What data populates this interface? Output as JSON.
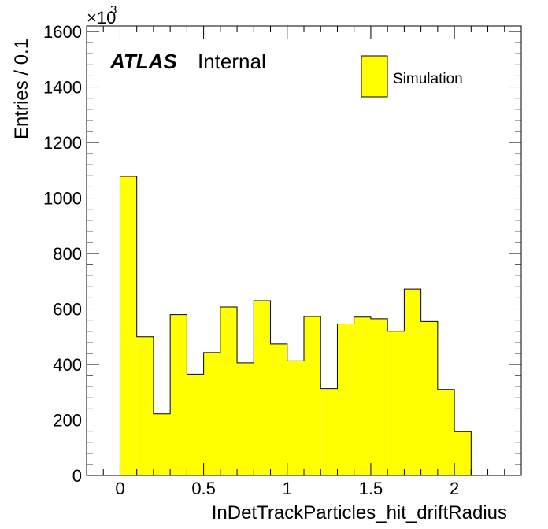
{
  "chart_data": {
    "type": "bar",
    "title": "",
    "xlabel": "InDetTrackParticles_hit_driftRadius",
    "ylabel": "Entries / 0.1",
    "y_multiplier_label": "×10",
    "y_multiplier_exponent": "3",
    "xlim": [
      -0.2,
      2.4
    ],
    "ylim": [
      0,
      1620
    ],
    "bin_width": 0.1,
    "bin_low_edges": [
      0.0,
      0.1,
      0.2,
      0.3,
      0.4,
      0.5,
      0.6,
      0.7,
      0.8,
      0.9,
      1.0,
      1.1,
      1.2,
      1.3,
      1.4,
      1.5,
      1.6,
      1.7,
      1.8,
      1.9,
      2.0
    ],
    "values": [
      1078,
      500,
      222,
      580,
      365,
      443,
      607,
      406,
      630,
      474,
      413,
      573,
      313,
      546,
      571,
      565,
      520,
      672,
      555,
      310,
      158
    ],
    "x_ticks": [
      {
        "value": 0,
        "label": "0"
      },
      {
        "value": 0.5,
        "label": "0.5"
      },
      {
        "value": 1,
        "label": "1"
      },
      {
        "value": 1.5,
        "label": "1.5"
      },
      {
        "value": 2,
        "label": "2"
      }
    ],
    "y_ticks": [
      {
        "value": 0,
        "label": "0"
      },
      {
        "value": 200,
        "label": "200"
      },
      {
        "value": 400,
        "label": "400"
      },
      {
        "value": 600,
        "label": "600"
      },
      {
        "value": 800,
        "label": "800"
      },
      {
        "value": 1000,
        "label": "1000"
      },
      {
        "value": 1200,
        "label": "1200"
      },
      {
        "value": 1400,
        "label": "1400"
      },
      {
        "value": 1600,
        "label": "1600"
      }
    ],
    "series": [
      {
        "name": "Simulation",
        "color": "#ffff00",
        "edge_color": "#000000"
      }
    ],
    "legend_position": "top-right",
    "grid": false
  },
  "annotations": {
    "experiment": "ATLAS",
    "status": "Internal"
  }
}
